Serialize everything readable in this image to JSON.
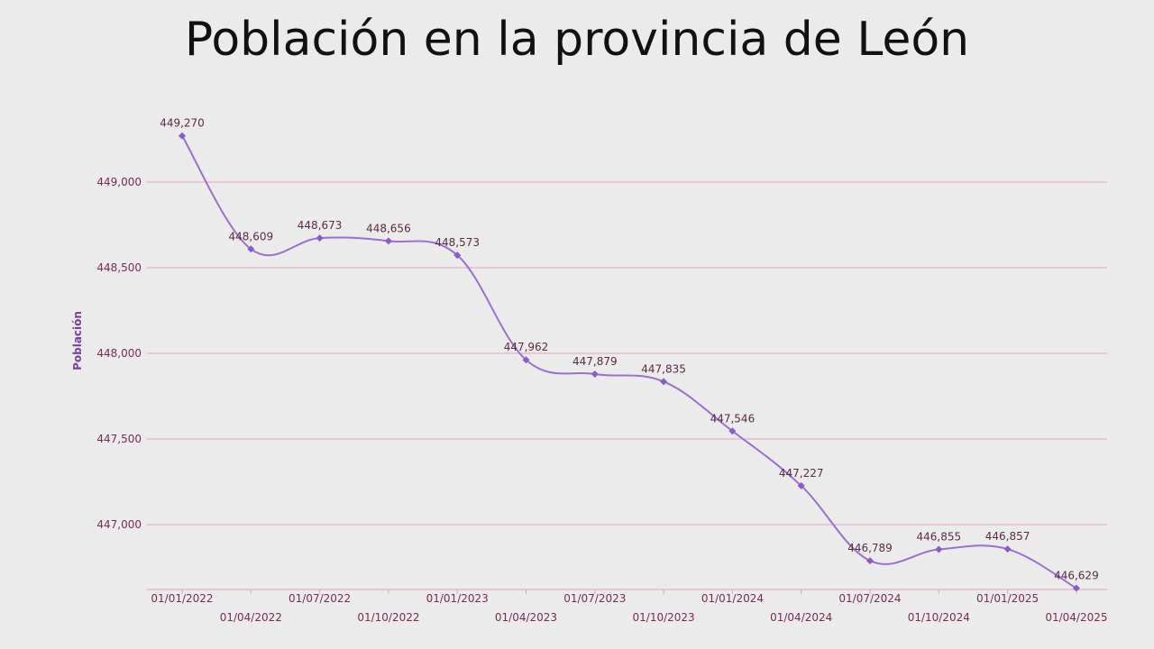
{
  "chart_data": {
    "type": "line",
    "title": "Población en la provincia de León",
    "xlabel": "",
    "ylabel": "Población",
    "categories": [
      "01/01/2022",
      "01/04/2022",
      "01/07/2022",
      "01/10/2022",
      "01/01/2023",
      "01/04/2023",
      "01/07/2023",
      "01/10/2023",
      "01/01/2024",
      "01/04/2024",
      "01/07/2024",
      "01/10/2024",
      "01/01/2025",
      "01/04/2025"
    ],
    "series": [
      {
        "values": [
          449270,
          448609,
          448673,
          448656,
          448573,
          447962,
          447879,
          447835,
          447546,
          447227,
          446789,
          446855,
          446857,
          446629
        ],
        "labels": [
          "449,270",
          "448,609",
          "448,673",
          "448,656",
          "448,573",
          "447,962",
          "447,879",
          "447,835",
          "447,546",
          "447,227",
          "446,789",
          "446,855",
          "446,857",
          "446,629"
        ]
      }
    ],
    "yticks": [
      447000,
      447500,
      448000,
      448500,
      449000
    ],
    "ytick_labels": [
      "447,000",
      "447,500",
      "448,000",
      "448,500",
      "449,000"
    ],
    "ylim": [
      446629,
      449270
    ],
    "grid": true,
    "colors": {
      "line": "#9b6fd6",
      "marker": "#8a5bc9",
      "grid": "#e3a6bd",
      "axis": "#d9a3c3",
      "tick_text": "#7a2b55",
      "label_text": "#5a2a46",
      "ylabel_text": "#7b3fa0"
    }
  }
}
